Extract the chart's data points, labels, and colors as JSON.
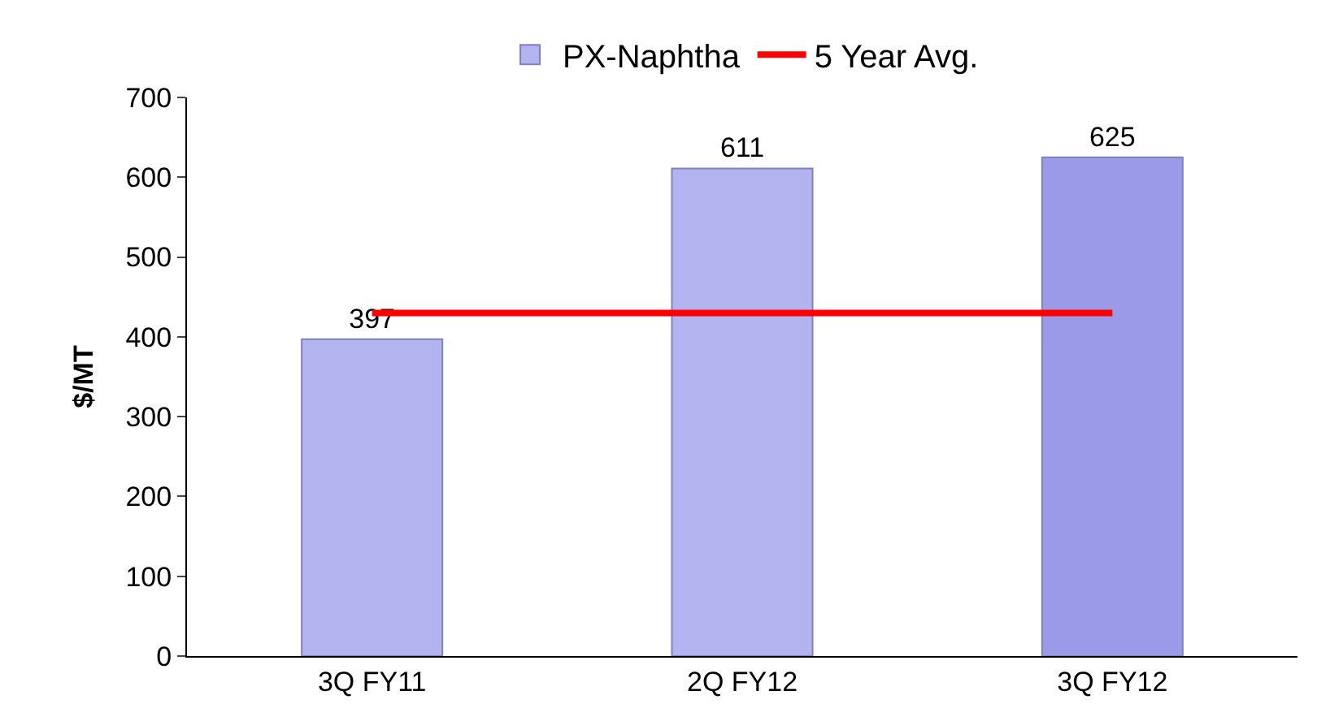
{
  "chart_data": {
    "type": "bar",
    "ylabel": "$/MT",
    "categories": [
      "3Q FY11",
      "2Q FY12",
      "3Q FY12"
    ],
    "series": [
      {
        "name": "PX-Naphtha",
        "colors": [
          "#b3b3f0",
          "#b3b3f0",
          "#9a9ae8"
        ],
        "values": [
          397,
          611,
          625
        ],
        "value_labels": [
          "397",
          "611",
          "625"
        ]
      },
      {
        "name": "5 Year Avg.",
        "type": "line",
        "color": "#ff0000",
        "values": [
          430,
          430,
          430
        ]
      }
    ],
    "ylim": [
      0,
      700
    ],
    "yticks": [
      0,
      100,
      200,
      300,
      400,
      500,
      600,
      700
    ],
    "legend": "top",
    "marker": "none"
  }
}
